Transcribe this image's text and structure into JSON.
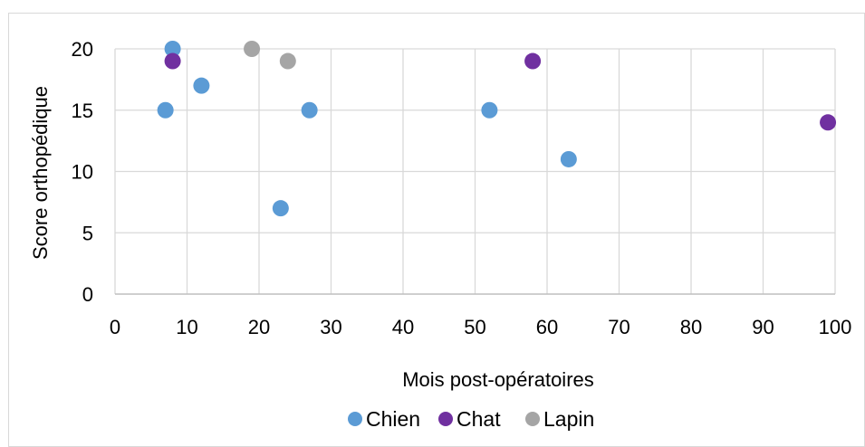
{
  "chart_data": {
    "type": "scatter",
    "xlabel": "Mois post-opératoires",
    "ylabel": "Score orthopédique",
    "xlim": [
      0,
      100
    ],
    "ylim": [
      0,
      20
    ],
    "x_ticks": [
      "0",
      "10",
      "20",
      "30",
      "40",
      "50",
      "60",
      "70",
      "80",
      "90",
      "100"
    ],
    "y_ticks": [
      "0",
      "5",
      "10",
      "15",
      "20"
    ],
    "grid": true,
    "legend_position": "bottom",
    "series": [
      {
        "name": "Chien",
        "color": "#5b9bd5",
        "points": [
          [
            7,
            15
          ],
          [
            8,
            20
          ],
          [
            12,
            17
          ],
          [
            23,
            7
          ],
          [
            27,
            15
          ],
          [
            52,
            15
          ],
          [
            63,
            11
          ]
        ]
      },
      {
        "name": "Chat",
        "color": "#7030a0",
        "points": [
          [
            8,
            19
          ],
          [
            58,
            19
          ],
          [
            99,
            14
          ]
        ]
      },
      {
        "name": "Lapin",
        "color": "#a5a5a5",
        "points": [
          [
            19,
            20
          ],
          [
            24,
            19
          ]
        ]
      }
    ]
  }
}
